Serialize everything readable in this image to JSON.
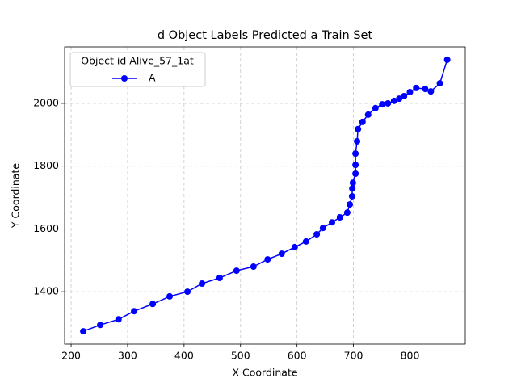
{
  "chart_data": {
    "type": "line",
    "title": "d Object Labels Predicted a Train Set",
    "xlabel": "X Coordinate",
    "ylabel": "Y Coordinate",
    "legend_title": "Object id Alive_57_1at",
    "legend_loc": "upper left",
    "grid": true,
    "x": [
      221.5,
      251.5,
      284,
      311.6,
      344.5,
      374.5,
      406,
      431.8,
      463,
      493,
      523,
      548,
      573,
      596,
      616,
      635,
      646,
      662,
      676,
      689,
      693.5,
      697.6,
      698,
      699,
      703.6,
      703.6,
      703.6,
      706.4,
      708,
      716,
      726,
      739,
      751,
      761,
      772,
      781,
      789.6,
      800,
      811,
      827,
      837,
      853,
      866
    ],
    "series": [
      {
        "name": "A",
        "color": "#0000ff",
        "values": [
          1274,
          1294,
          1312,
          1338,
          1361,
          1385,
          1400,
          1426,
          1444,
          1467,
          1480,
          1503,
          1521,
          1542,
          1560,
          1583,
          1603,
          1621,
          1637,
          1652,
          1678,
          1704,
          1729,
          1747,
          1776,
          1804,
          1840,
          1879,
          1918,
          1941,
          1964,
          1985,
          1997,
          2000,
          2008,
          2015,
          2023,
          2036,
          2049,
          2046,
          2038,
          2064,
          2139
        ]
      }
    ],
    "xlim": [
      188.5,
      898
    ],
    "ylim": [
      1233,
      2180
    ],
    "xticks": [
      200,
      300,
      400,
      500,
      600,
      700,
      800
    ],
    "yticks": [
      1400,
      1600,
      1800,
      2000
    ]
  }
}
